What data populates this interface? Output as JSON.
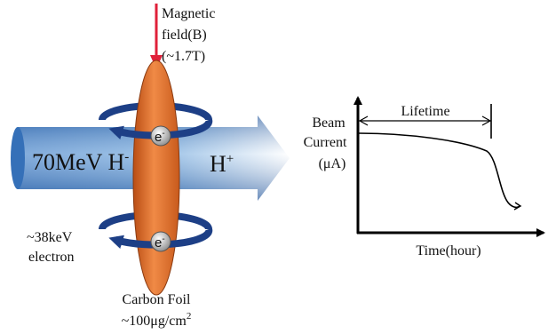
{
  "labels": {
    "magnetic_field": [
      "Magnetic",
      "field(B)",
      "(~1.7T)"
    ],
    "beam_in": {
      "text": "70MeV H",
      "sup": "-"
    },
    "beam_out": {
      "text": "H",
      "sup": "+"
    },
    "electrons": [
      {
        "text": "e",
        "sup": "-"
      },
      {
        "text": "e",
        "sup": "-"
      }
    ],
    "electron_energy": [
      "~38keV",
      "electron"
    ],
    "foil": [
      "Carbon Foil",
      {
        "text": "~100μg/cm",
        "sup": "2"
      }
    ]
  },
  "graph": {
    "y_label": [
      "Beam",
      "Current",
      "(μA)"
    ],
    "span_label": "Lifetime",
    "x_label": "Time(hour)"
  }
}
